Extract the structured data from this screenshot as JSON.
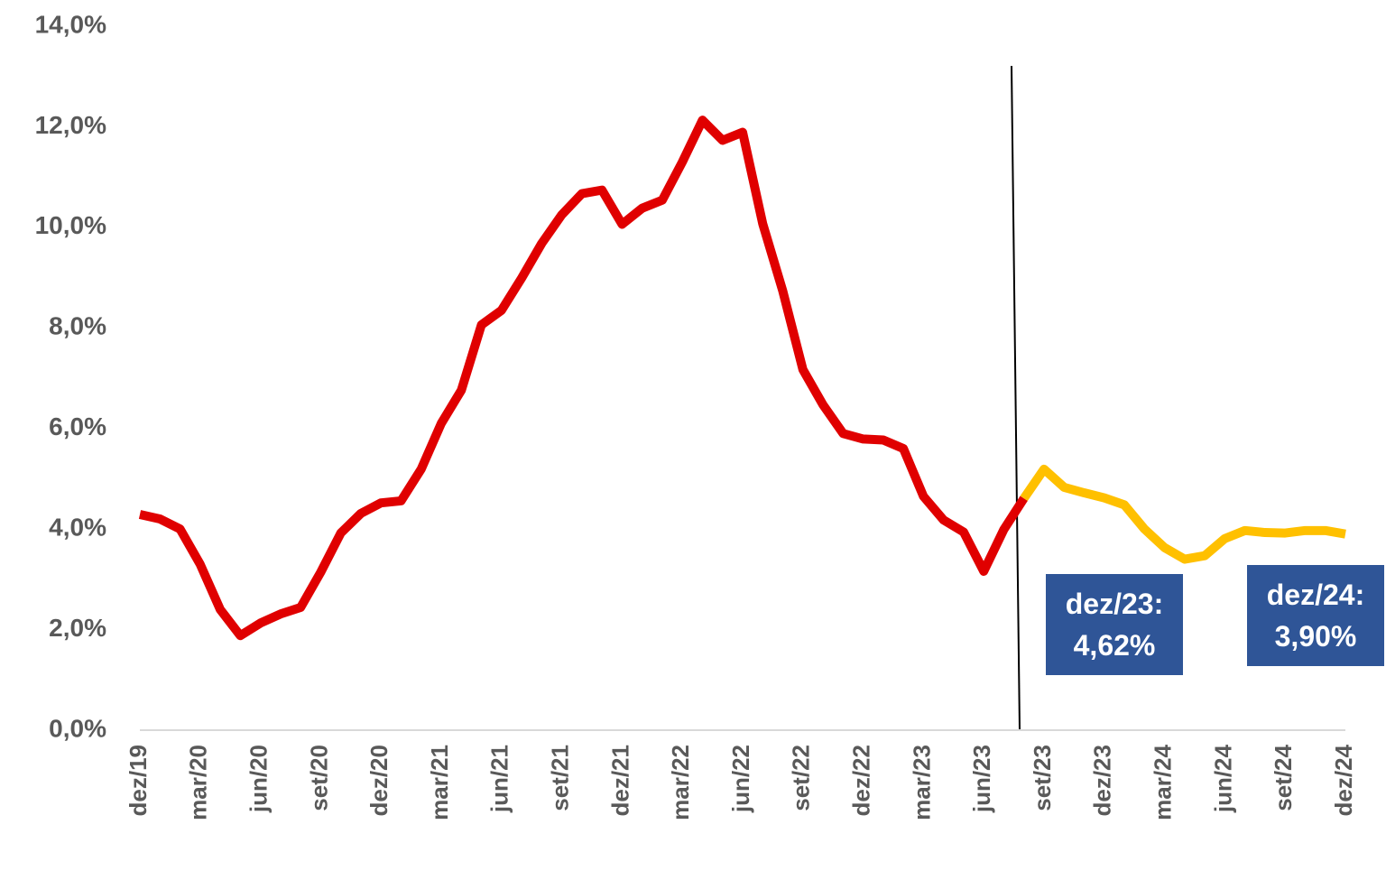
{
  "chart_data": {
    "type": "line",
    "categories": [
      "dez/19",
      null,
      null,
      "mar/20",
      null,
      null,
      "jun/20",
      null,
      null,
      "set/20",
      null,
      null,
      "dez/20",
      null,
      null,
      "mar/21",
      null,
      null,
      "jun/21",
      null,
      null,
      "set/21",
      null,
      null,
      "dez/21",
      null,
      null,
      "mar/22",
      null,
      null,
      "jun/22",
      null,
      null,
      "set/22",
      null,
      null,
      "dez/22",
      null,
      null,
      "mar/23",
      null,
      null,
      "jun/23",
      null,
      null,
      "set/23",
      null,
      null,
      "dez/23",
      null,
      null,
      "mar/24",
      null,
      null,
      "jun/24",
      null,
      null,
      "set/24",
      null,
      null,
      "dez/24"
    ],
    "series": [
      {
        "color": "#e00000",
        "values": [
          4.29,
          4.2,
          4.0,
          3.3,
          2.4,
          1.88,
          2.13,
          2.31,
          2.44,
          3.14,
          3.92,
          4.31,
          4.52,
          4.56,
          5.19,
          6.1,
          6.76,
          8.06,
          8.35,
          8.99,
          9.68,
          10.25,
          10.67,
          10.74,
          10.06,
          10.38,
          10.54,
          11.3,
          12.13,
          11.73,
          11.89,
          10.07,
          8.73,
          7.17,
          6.47,
          5.9,
          5.79,
          5.77,
          5.6,
          4.65,
          4.18,
          3.94,
          3.16,
          3.99,
          4.61,
          null,
          null,
          null,
          null,
          null,
          null,
          null,
          null,
          null,
          null,
          null,
          null,
          null,
          null,
          null,
          null
        ]
      },
      {
        "color": "#ffc000",
        "values": [
          null,
          null,
          null,
          null,
          null,
          null,
          null,
          null,
          null,
          null,
          null,
          null,
          null,
          null,
          null,
          null,
          null,
          null,
          null,
          null,
          null,
          null,
          null,
          null,
          null,
          null,
          null,
          null,
          null,
          null,
          null,
          null,
          null,
          null,
          null,
          null,
          null,
          null,
          null,
          null,
          null,
          null,
          null,
          null,
          4.61,
          5.19,
          4.83,
          4.72,
          4.62,
          4.48,
          4.0,
          3.63,
          3.4,
          3.47,
          3.81,
          3.97,
          3.93,
          3.92,
          3.97,
          3.97,
          3.9
        ]
      }
    ],
    "ylim": [
      0,
      14
    ],
    "yticks": [
      {
        "value": 0,
        "label": "0,0%"
      },
      {
        "value": 2,
        "label": "2,0%"
      },
      {
        "value": 4,
        "label": "4,0%"
      },
      {
        "value": 6,
        "label": "6,0%"
      },
      {
        "value": 8,
        "label": "8,0%"
      },
      {
        "value": 10,
        "label": "10,0%"
      },
      {
        "value": 12,
        "label": "12,0%"
      },
      {
        "value": 14,
        "label": "14,0%"
      }
    ],
    "annotations": [
      {
        "lines": [
          "dez/23:",
          "4,62%"
        ],
        "color": "#2f5597"
      },
      {
        "lines": [
          "dez/24:",
          "3,90%"
        ],
        "color": "#2f5597"
      }
    ]
  }
}
